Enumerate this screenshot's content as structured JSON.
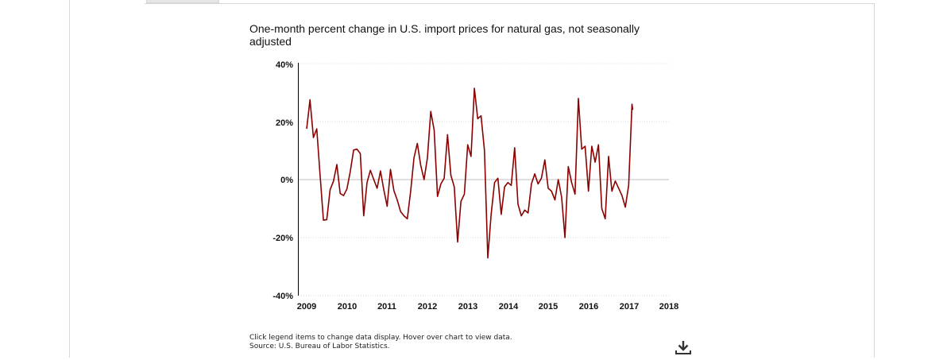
{
  "note": {
    "line1": "Click legend items to change data display. Hover over chart to view data.",
    "line2": "Source: U.S. Bureau of Labor Statistics."
  },
  "download": {
    "icon": "download-icon"
  },
  "colors": {
    "series": "#8b0000",
    "zero_line": "#bfbfbf",
    "grid": "#d9d9d9"
  },
  "chart_data": {
    "type": "line",
    "title": "One-month percent change in U.S. import prices for natural gas, not seasonally adjusted",
    "xlabel": "",
    "ylabel": "",
    "xlim": [
      2009,
      2018
    ],
    "ylim": [
      -40,
      40
    ],
    "x_ticks": [
      "2009",
      "2010",
      "2011",
      "2012",
      "2013",
      "2014",
      "2015",
      "2016",
      "2017",
      "2018"
    ],
    "y_ticks": [
      "40%",
      "20%",
      "0%",
      "-20%",
      "-40%"
    ],
    "y_tick_values": [
      40,
      20,
      0,
      -20,
      -40
    ],
    "grid": "horizontal dotted",
    "series": [
      {
        "values": [
          [
            2009.0,
            17.5
          ],
          [
            2009.083,
            27.5
          ],
          [
            2009.167,
            14.5
          ],
          [
            2009.25,
            17.5
          ],
          [
            2009.333,
            1.5
          ],
          [
            2009.417,
            -14.0
          ],
          [
            2009.5,
            -13.8
          ],
          [
            2009.583,
            -3.5
          ],
          [
            2009.667,
            -0.5
          ],
          [
            2009.75,
            5.2
          ],
          [
            2009.833,
            -4.8
          ],
          [
            2009.917,
            -5.5
          ],
          [
            2010.0,
            -3.2
          ],
          [
            2010.083,
            2.8
          ],
          [
            2010.167,
            10.2
          ],
          [
            2010.25,
            10.5
          ],
          [
            2010.333,
            9.0
          ],
          [
            2010.417,
            -12.5
          ],
          [
            2010.5,
            -1.0
          ],
          [
            2010.583,
            3.2
          ],
          [
            2010.667,
            0.0
          ],
          [
            2010.75,
            -3.0
          ],
          [
            2010.833,
            3.0
          ],
          [
            2010.917,
            -3.5
          ],
          [
            2011.0,
            -9.2
          ],
          [
            2011.083,
            3.5
          ],
          [
            2011.167,
            -3.8
          ],
          [
            2011.25,
            -7.0
          ],
          [
            2011.333,
            -11.0
          ],
          [
            2011.417,
            -12.5
          ],
          [
            2011.5,
            -13.5
          ],
          [
            2011.583,
            -4.0
          ],
          [
            2011.667,
            7.5
          ],
          [
            2011.75,
            12.5
          ],
          [
            2011.833,
            5.0
          ],
          [
            2011.917,
            0.0
          ],
          [
            2012.0,
            7.5
          ],
          [
            2012.083,
            23.5
          ],
          [
            2012.167,
            17.0
          ],
          [
            2012.25,
            -5.8
          ],
          [
            2012.333,
            -1.5
          ],
          [
            2012.417,
            0.5
          ],
          [
            2012.5,
            15.5
          ],
          [
            2012.583,
            1.5
          ],
          [
            2012.667,
            -2.5
          ],
          [
            2012.75,
            -21.5
          ],
          [
            2012.833,
            -7.5
          ],
          [
            2012.917,
            -5.0
          ],
          [
            2013.0,
            12.0
          ],
          [
            2013.083,
            8.0
          ],
          [
            2013.167,
            31.5
          ],
          [
            2013.25,
            21.0
          ],
          [
            2013.333,
            22.0
          ],
          [
            2013.417,
            10.0
          ],
          [
            2013.5,
            -27.0
          ],
          [
            2013.583,
            -12.0
          ],
          [
            2013.667,
            -1.0
          ],
          [
            2013.75,
            0.5
          ],
          [
            2013.833,
            -12.0
          ],
          [
            2013.917,
            -2.5
          ],
          [
            2014.0,
            -1.0
          ],
          [
            2014.083,
            -2.0
          ],
          [
            2014.167,
            11.0
          ],
          [
            2014.25,
            -8.5
          ],
          [
            2014.333,
            -12.5
          ],
          [
            2014.417,
            -10.5
          ],
          [
            2014.5,
            -11.5
          ],
          [
            2014.583,
            -1.5
          ],
          [
            2014.667,
            2.0
          ],
          [
            2014.75,
            -1.5
          ],
          [
            2014.833,
            0.5
          ],
          [
            2014.917,
            6.8
          ],
          [
            2015.0,
            -3.0
          ],
          [
            2015.083,
            -4.0
          ],
          [
            2015.167,
            -7.0
          ],
          [
            2015.25,
            0.0
          ],
          [
            2015.333,
            -6.0
          ],
          [
            2015.417,
            -20.0
          ],
          [
            2015.5,
            4.5
          ],
          [
            2015.583,
            -1.0
          ],
          [
            2015.667,
            -5.0
          ],
          [
            2015.75,
            28.0
          ],
          [
            2015.833,
            10.5
          ],
          [
            2015.917,
            11.5
          ],
          [
            2016.0,
            -4.0
          ],
          [
            2016.083,
            11.5
          ],
          [
            2016.167,
            6.0
          ],
          [
            2016.25,
            12.0
          ],
          [
            2016.333,
            -10.0
          ],
          [
            2016.417,
            -13.5
          ],
          [
            2016.5,
            8.0
          ],
          [
            2016.583,
            -4.0
          ],
          [
            2016.667,
            -0.5
          ],
          [
            2016.75,
            -3.0
          ],
          [
            2016.833,
            -5.5
          ],
          [
            2016.917,
            -9.5
          ],
          [
            2017.0,
            -2.0
          ],
          [
            2017.083,
            26.0
          ],
          [
            2017.1,
            24.0
          ]
        ]
      }
    ]
  }
}
